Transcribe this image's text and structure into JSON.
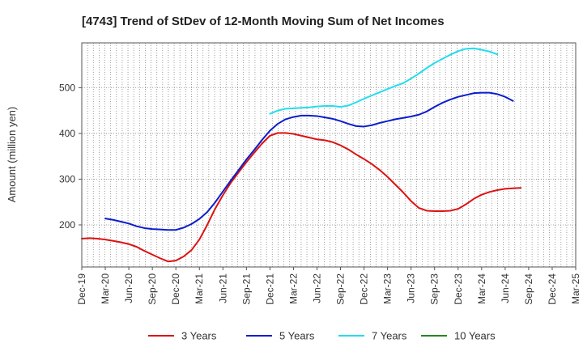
{
  "chart_data": {
    "type": "line",
    "title": "[4743]  Trend of StDev of 12-Month Moving Sum of Net Incomes",
    "xlabel": "",
    "ylabel": "Amount (million yen)",
    "ylim": [
      108,
      598
    ],
    "y_ticks": [
      200,
      300,
      400,
      500
    ],
    "y_tick_labels": [
      "200",
      "300",
      "400",
      "500"
    ],
    "x_tick_labels": [
      "Dec-19",
      "Mar-20",
      "Jun-20",
      "Sep-20",
      "Dec-20",
      "Mar-21",
      "Jun-21",
      "Sep-21",
      "Dec-21",
      "Mar-22",
      "Jun-22",
      "Sep-22",
      "Dec-22",
      "Mar-23",
      "Jun-23",
      "Sep-23",
      "Dec-23",
      "Mar-24",
      "Jun-24",
      "Sep-24",
      "Dec-24",
      "Mar-25"
    ],
    "grid": true,
    "legend_position": "bottom",
    "series": [
      {
        "name": "3 Years",
        "color": "#dd1111",
        "start_index": 0,
        "values": [
          170,
          171,
          170,
          168,
          165,
          162,
          158,
          152,
          143,
          135,
          127,
          120,
          122,
          131,
          145,
          168,
          200,
          235,
          265,
          292,
          315,
          337,
          358,
          378,
          395,
          401,
          401,
          399,
          395,
          391,
          387,
          385,
          381,
          374,
          365,
          354,
          344,
          333,
          320,
          305,
          288,
          271,
          252,
          237,
          231,
          230,
          230,
          231,
          235,
          245,
          257,
          266,
          272,
          276,
          279,
          280,
          281
        ]
      },
      {
        "name": "5 Years",
        "color": "#0a1dcc",
        "start_index": 3,
        "values": [
          214,
          211,
          207,
          203,
          197,
          193,
          191,
          190,
          189,
          189,
          194,
          202,
          213,
          228,
          249,
          273,
          297,
          320,
          343,
          364,
          386,
          406,
          421,
          431,
          436,
          439,
          439,
          438,
          435,
          432,
          427,
          421,
          416,
          415,
          418,
          423,
          427,
          431,
          434,
          437,
          441,
          448,
          458,
          467,
          474,
          480,
          484,
          488,
          489,
          489,
          486,
          480,
          471
        ]
      },
      {
        "name": "7 Years",
        "color": "#22ddee",
        "start_index": 24,
        "values": [
          443,
          450,
          454,
          455,
          456,
          457,
          459,
          460,
          460,
          458,
          461,
          468,
          476,
          483,
          490,
          497,
          504,
          510,
          520,
          531,
          543,
          554,
          563,
          572,
          580,
          585,
          586,
          583,
          579,
          573
        ]
      },
      {
        "name": "10 Years",
        "color": "#228822",
        "start_index": 0,
        "values": []
      }
    ]
  }
}
